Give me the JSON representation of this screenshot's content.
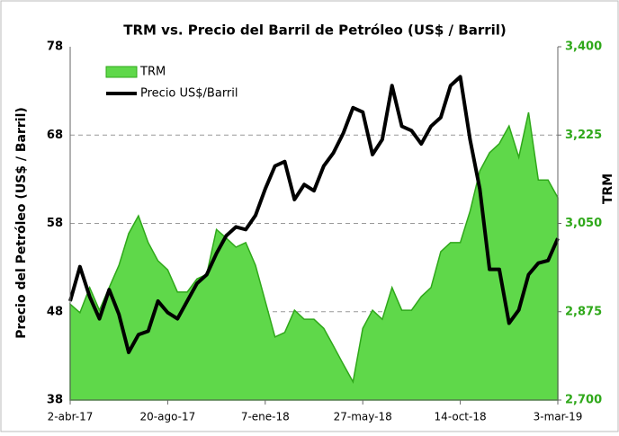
{
  "chart_data": {
    "type": "line",
    "title": "TRM vs. Precio del Barril de Petróleo (US$ / Barril)",
    "y_label": "Precio del Petróleo (US$ / Barril)",
    "y2_label": "TRM",
    "categories": [
      "2-abr-17",
      null,
      null,
      null,
      null,
      null,
      null,
      null,
      null,
      null,
      "20-ago-17",
      null,
      null,
      null,
      null,
      null,
      null,
      null,
      null,
      null,
      "7-ene-18",
      null,
      null,
      null,
      null,
      null,
      null,
      null,
      null,
      null,
      "27-may-18",
      null,
      null,
      null,
      null,
      null,
      null,
      null,
      null,
      null,
      "14-oct-18",
      null,
      null,
      null,
      null,
      null,
      null,
      null,
      null,
      null,
      "3-mar-19"
    ],
    "series": [
      {
        "name": "TRM",
        "style": "area",
        "axis": "y2",
        "color": "#5fd84a",
        "edge_color": "#2fa81a",
        "values": [
          2890,
          2873,
          2923,
          2878,
          2923,
          2967,
          3030,
          3065,
          3012,
          2976,
          2958,
          2914,
          2914,
          2940,
          2949,
          3038,
          3021,
          3003,
          3012,
          2967,
          2896,
          2825,
          2834,
          2878,
          2860,
          2860,
          2842,
          2807,
          2771,
          2736,
          2842,
          2878,
          2860,
          2923,
          2878,
          2878,
          2905,
          2923,
          2994,
          3012,
          3012,
          3074,
          3154,
          3190,
          3208,
          3243,
          3181,
          3270,
          3136,
          3136,
          3101
        ]
      },
      {
        "name": "Precio US$/Barril",
        "style": "line",
        "color": "#000000",
        "values": [
          49.2,
          53.1,
          49.7,
          47.2,
          50.5,
          47.7,
          43.4,
          45.4,
          45.8,
          49.2,
          47.9,
          47.2,
          49.2,
          51.2,
          52.2,
          54.6,
          56.6,
          57.6,
          57.3,
          58.9,
          61.9,
          64.5,
          65.0,
          60.7,
          62.4,
          61.7,
          64.5,
          66.0,
          68.2,
          71.1,
          70.6,
          65.8,
          67.5,
          73.6,
          69.0,
          68.5,
          67.0,
          69.0,
          70.0,
          73.6,
          74.6,
          67.5,
          61.9,
          52.8,
          52.8,
          46.7,
          48.2,
          52.2,
          53.5,
          53.8,
          56.3
        ]
      }
    ],
    "ylim": [
      38,
      78
    ],
    "yticks": [
      38,
      48,
      58,
      68,
      78
    ],
    "y2lim": [
      2700,
      3400
    ],
    "y2ticks": [
      {
        "value": 2700,
        "label": "2,700"
      },
      {
        "value": 2875,
        "label": "2,875"
      },
      {
        "value": 3050,
        "label": "3,050"
      },
      {
        "value": 3225,
        "label": "3,225"
      },
      {
        "value": 3400,
        "label": "3,400"
      }
    ],
    "grid": true,
    "legend": "top-left"
  }
}
